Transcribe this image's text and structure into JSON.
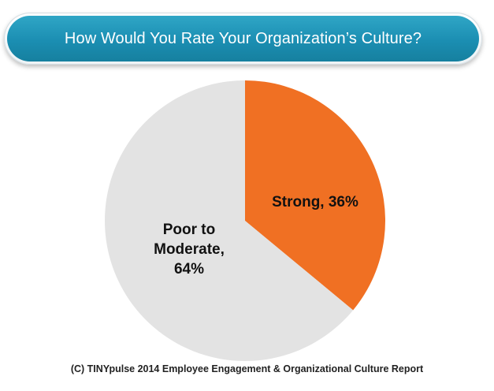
{
  "chart_data": {
    "type": "pie",
    "title": "How Would You Rate Your Organization’s Culture?",
    "slices": [
      {
        "label_lines": [
          "Strong, 36%"
        ],
        "value": 36,
        "color": "#f07023"
      },
      {
        "label_lines": [
          "Poor to",
          "Moderate,",
          "64%"
        ],
        "value": 64,
        "color": "#e3e3e3"
      }
    ],
    "start_angle": "12 o'clock",
    "direction": "clockwise",
    "legend": "none"
  },
  "footer": {
    "source": "(C) TINYpulse 2014 Employee Engagement & Organizational Culture Report"
  }
}
